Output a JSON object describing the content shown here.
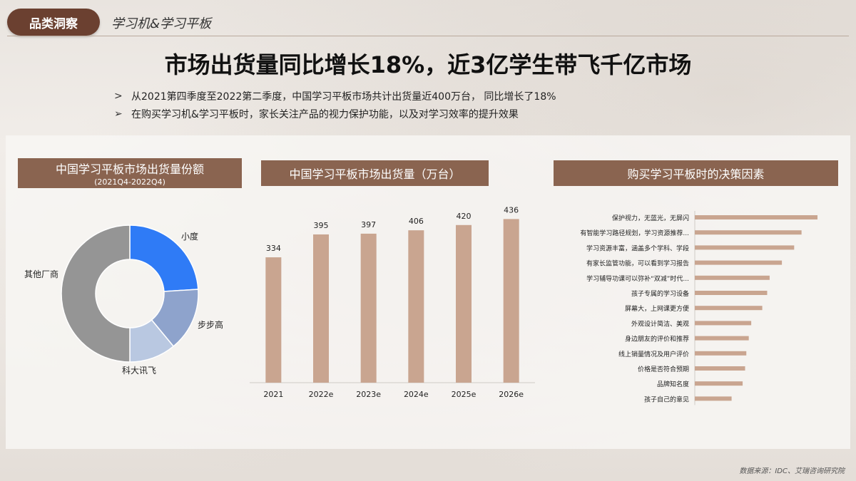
{
  "header": {
    "tag": "品类洞察",
    "subtitle": "学习机&学习平板",
    "headline": "市场出货量同比增长18%，近3亿学生带飞千亿市场",
    "bullets": [
      {
        "marker": ">",
        "text": "从2021第四季度至2022第二季度，中国学习平板市场共计出货量近400万台，  同比增长了18%"
      },
      {
        "marker": "➢",
        "text": "在购买学习机&学习平板时，家长关注产品的视力保护功能，以及对学习效率的提升效果"
      }
    ]
  },
  "colors": {
    "tag_bg": "#6b4030",
    "card_title_bg": "#8a6450",
    "bar": "#c9a590",
    "donut": [
      "#2f7bf6",
      "#8ea3cc",
      "#b9c8e1",
      "#959595"
    ]
  },
  "source": "数据来源：IDC、艾瑞咨询研究院",
  "chart_data": [
    {
      "type": "pie",
      "donut": true,
      "title": "中国学习平板市场出货量份额",
      "subtitle": "(2021Q4-2022Q4)",
      "categories": [
        "小度",
        "步步高",
        "科大讯飞",
        "其他厂商"
      ],
      "values": [
        24,
        15,
        11,
        50
      ]
    },
    {
      "type": "bar",
      "title": "中国学习平板市场出货量（万台）",
      "categories": [
        "2021",
        "2022e",
        "2023e",
        "2024e",
        "2025e",
        "2026e"
      ],
      "values": [
        334,
        395,
        397,
        406,
        420,
        436
      ],
      "ylim": [
        0,
        450
      ]
    },
    {
      "type": "bar",
      "orientation": "horizontal",
      "title": "购买学习平板时的决策因素",
      "categories": [
        "保护视力，无蓝光，无屏闪",
        "有智能学习路径规划，学习资源推荐...",
        "学习资源丰富，涵盖多个学科、学段",
        "有家长监管功能，可以看到学习报告",
        "学习辅导功课可以弥补“双减”时代...",
        "孩子专属的学习设备",
        "屏幕大，上网课更方便",
        "外观设计简洁、美观",
        "身边朋友的评价和推荐",
        "线上销量情况及用户评价",
        "价格是否符合预期",
        "品牌知名度",
        "孩子自己的意见"
      ],
      "values": [
        100,
        87,
        81,
        71,
        61,
        59,
        55,
        46,
        44,
        42,
        41,
        39,
        30
      ]
    }
  ]
}
